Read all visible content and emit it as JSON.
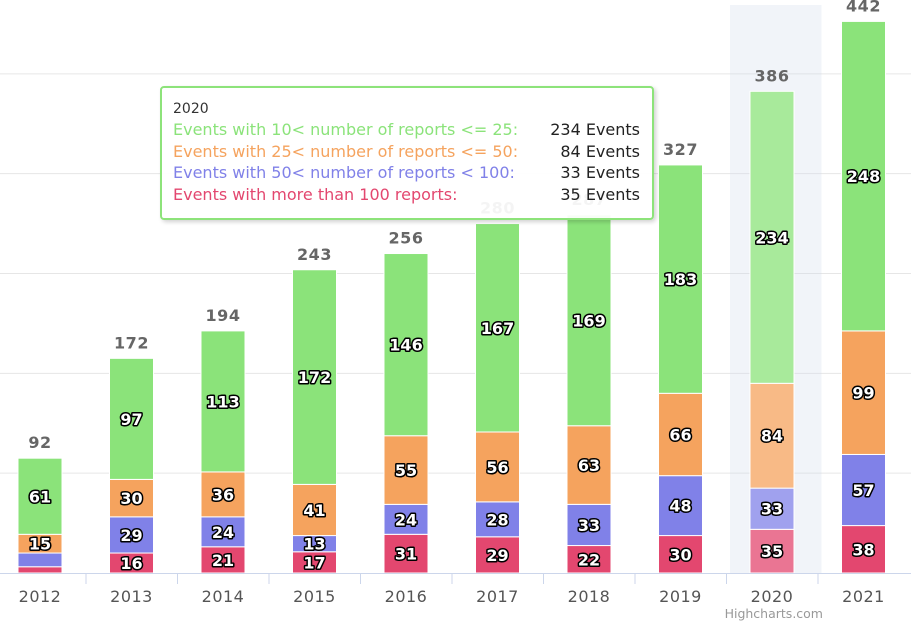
{
  "chart_data": {
    "type": "bar",
    "stacked": true,
    "categories": [
      "2012",
      "2013",
      "2014",
      "2015",
      "2016",
      "2017",
      "2018",
      "2019",
      "2020",
      "2021"
    ],
    "series": [
      {
        "name": "Events with more than 100 reports:",
        "color": "#e3476f",
        "values": [
          5,
          16,
          21,
          17,
          31,
          29,
          22,
          30,
          35,
          38
        ]
      },
      {
        "name": "Events with 50< number of reports < 100:",
        "color": "#8081e8",
        "values": [
          11,
          29,
          24,
          13,
          24,
          28,
          33,
          48,
          33,
          57
        ]
      },
      {
        "name": "Events with 25< number of reports <= 50:",
        "color": "#f5a35e",
        "values": [
          15,
          30,
          36,
          41,
          55,
          56,
          63,
          66,
          84,
          99
        ]
      },
      {
        "name": "Events with 10< number of reports <= 25:",
        "color": "#8be37a",
        "values": [
          61,
          97,
          113,
          172,
          146,
          167,
          169,
          183,
          234,
          248
        ]
      }
    ],
    "totals": [
      92,
      172,
      194,
      243,
      256,
      280,
      287,
      327,
      386,
      442
    ],
    "ylim": [
      0,
      480
    ],
    "grid": true,
    "highlighted_category": "2020"
  },
  "tooltip": {
    "title": "2020",
    "rows": [
      {
        "label": "Events with 10< number of reports <= 25:",
        "value": "234 Events",
        "color": "#8be37a"
      },
      {
        "label": "Events with 25< number of reports <= 50:",
        "value": "84 Events",
        "color": "#f5a35e"
      },
      {
        "label": "Events with 50< number of reports < 100:",
        "value": "33 Events",
        "color": "#8081e8"
      },
      {
        "label": "Events with more than 100 reports:",
        "value": "35 Events",
        "color": "#e3476f"
      }
    ]
  },
  "credit": "Highcharts.com"
}
